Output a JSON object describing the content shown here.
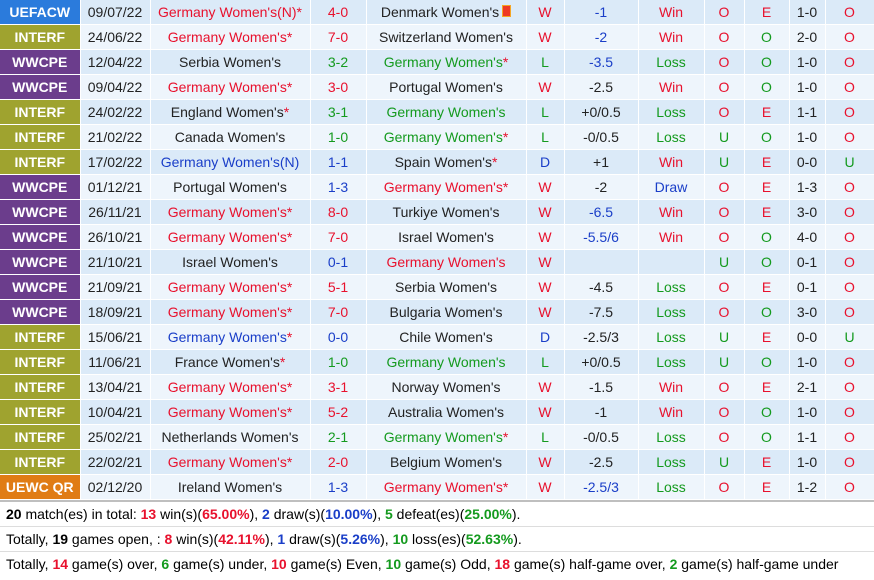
{
  "colors": {
    "UEFACW": "#2b7bdc",
    "INTERF": "#9fa32f",
    "WWCPE": "#6b3d8c",
    "UEWC QR": "#e07c15"
  },
  "rows": [
    {
      "comp": "UEFACW",
      "date": "09/07/22",
      "home": "Germany Women's(N)",
      "home_star": true,
      "home_color": "red",
      "score": "4-0",
      "score_color": "red",
      "away": "Denmark Women's",
      "away_star": false,
      "away_color": "dk",
      "away_flag": true,
      "res": "W",
      "res_color": "red",
      "hc": "-1",
      "hc_color": "blue",
      "hcr": "Win",
      "hcr_color": "red",
      "ou": "O",
      "ou_color": "red",
      "oe": "E",
      "oe_color": "red",
      "ht": "1-0",
      "hou": "O",
      "hou_color": "red"
    },
    {
      "comp": "INTERF",
      "date": "24/06/22",
      "home": "Germany Women's",
      "home_star": true,
      "home_color": "red",
      "score": "7-0",
      "score_color": "red",
      "away": "Switzerland Women's",
      "away_star": false,
      "away_color": "dk",
      "away_flag": false,
      "res": "W",
      "res_color": "red",
      "hc": "-2",
      "hc_color": "blue",
      "hcr": "Win",
      "hcr_color": "red",
      "ou": "O",
      "ou_color": "red",
      "oe": "O",
      "oe_color": "green",
      "ht": "2-0",
      "hou": "O",
      "hou_color": "red"
    },
    {
      "comp": "WWCPE",
      "date": "12/04/22",
      "home": "Serbia Women's",
      "home_star": false,
      "home_color": "dk",
      "score": "3-2",
      "score_color": "green",
      "away": "Germany Women's",
      "away_star": true,
      "away_color": "green",
      "away_flag": false,
      "res": "L",
      "res_color": "green",
      "hc": "-3.5",
      "hc_color": "blue",
      "hcr": "Loss",
      "hcr_color": "green",
      "ou": "O",
      "ou_color": "red",
      "oe": "O",
      "oe_color": "green",
      "ht": "1-0",
      "hou": "O",
      "hou_color": "red"
    },
    {
      "comp": "WWCPE",
      "date": "09/04/22",
      "home": "Germany Women's",
      "home_star": true,
      "home_color": "red",
      "score": "3-0",
      "score_color": "red",
      "away": "Portugal Women's",
      "away_star": false,
      "away_color": "dk",
      "away_flag": false,
      "res": "W",
      "res_color": "red",
      "hc": "-2.5",
      "hc_color": "dk",
      "hcr": "Win",
      "hcr_color": "red",
      "ou": "O",
      "ou_color": "red",
      "oe": "O",
      "oe_color": "green",
      "ht": "1-0",
      "hou": "O",
      "hou_color": "red"
    },
    {
      "comp": "INTERF",
      "date": "24/02/22",
      "home": "England Women's",
      "home_star": true,
      "home_color": "dk",
      "score": "3-1",
      "score_color": "green",
      "away": "Germany Women's",
      "away_star": false,
      "away_color": "green",
      "away_flag": false,
      "res": "L",
      "res_color": "green",
      "hc": "+0/0.5",
      "hc_color": "dk",
      "hcr": "Loss",
      "hcr_color": "green",
      "ou": "O",
      "ou_color": "red",
      "oe": "E",
      "oe_color": "red",
      "ht": "1-1",
      "hou": "O",
      "hou_color": "red"
    },
    {
      "comp": "INTERF",
      "date": "21/02/22",
      "home": "Canada Women's",
      "home_star": false,
      "home_color": "dk",
      "score": "1-0",
      "score_color": "green",
      "away": "Germany Women's",
      "away_star": true,
      "away_color": "green",
      "away_flag": false,
      "res": "L",
      "res_color": "green",
      "hc": "-0/0.5",
      "hc_color": "dk",
      "hcr": "Loss",
      "hcr_color": "green",
      "ou": "U",
      "ou_color": "green",
      "oe": "O",
      "oe_color": "green",
      "ht": "1-0",
      "hou": "O",
      "hou_color": "red"
    },
    {
      "comp": "INTERF",
      "date": "17/02/22",
      "home": "Germany Women's(N)",
      "home_star": false,
      "home_color": "blue",
      "score": "1-1",
      "score_color": "blue",
      "away": "Spain Women's",
      "away_star": true,
      "away_color": "dk",
      "away_flag": false,
      "res": "D",
      "res_color": "blue",
      "hc": "+1",
      "hc_color": "dk",
      "hcr": "Win",
      "hcr_color": "red",
      "ou": "U",
      "ou_color": "green",
      "oe": "E",
      "oe_color": "red",
      "ht": "0-0",
      "hou": "U",
      "hou_color": "green"
    },
    {
      "comp": "WWCPE",
      "date": "01/12/21",
      "home": "Portugal Women's",
      "home_star": false,
      "home_color": "dk",
      "score": "1-3",
      "score_color": "blue",
      "away": "Germany Women's",
      "away_star": true,
      "away_color": "red",
      "away_flag": false,
      "res": "W",
      "res_color": "red",
      "hc": "-2",
      "hc_color": "dk",
      "hcr": "Draw",
      "hcr_color": "blue",
      "ou": "O",
      "ou_color": "red",
      "oe": "E",
      "oe_color": "red",
      "ht": "1-3",
      "hou": "O",
      "hou_color": "red"
    },
    {
      "comp": "WWCPE",
      "date": "26/11/21",
      "home": "Germany Women's",
      "home_star": true,
      "home_color": "red",
      "score": "8-0",
      "score_color": "red",
      "away": "Turkiye Women's",
      "away_star": false,
      "away_color": "dk",
      "away_flag": false,
      "res": "W",
      "res_color": "red",
      "hc": "-6.5",
      "hc_color": "blue",
      "hcr": "Win",
      "hcr_color": "red",
      "ou": "O",
      "ou_color": "red",
      "oe": "E",
      "oe_color": "red",
      "ht": "3-0",
      "hou": "O",
      "hou_color": "red"
    },
    {
      "comp": "WWCPE",
      "date": "26/10/21",
      "home": "Germany Women's",
      "home_star": true,
      "home_color": "red",
      "score": "7-0",
      "score_color": "red",
      "away": "Israel Women's",
      "away_star": false,
      "away_color": "dk",
      "away_flag": false,
      "res": "W",
      "res_color": "red",
      "hc": "-5.5/6",
      "hc_color": "blue",
      "hcr": "Win",
      "hcr_color": "red",
      "ou": "O",
      "ou_color": "red",
      "oe": "O",
      "oe_color": "green",
      "ht": "4-0",
      "hou": "O",
      "hou_color": "red"
    },
    {
      "comp": "WWCPE",
      "date": "21/10/21",
      "home": "Israel Women's",
      "home_star": false,
      "home_color": "dk",
      "score": "0-1",
      "score_color": "blue",
      "away": "Germany Women's",
      "away_star": false,
      "away_color": "red",
      "away_flag": false,
      "res": "W",
      "res_color": "red",
      "hc": "",
      "hc_color": "dk",
      "hcr": "",
      "hcr_color": "dk",
      "ou": "U",
      "ou_color": "green",
      "oe": "O",
      "oe_color": "green",
      "ht": "0-1",
      "hou": "O",
      "hou_color": "red"
    },
    {
      "comp": "WWCPE",
      "date": "21/09/21",
      "home": "Germany Women's",
      "home_star": true,
      "home_color": "red",
      "score": "5-1",
      "score_color": "red",
      "away": "Serbia Women's",
      "away_star": false,
      "away_color": "dk",
      "away_flag": false,
      "res": "W",
      "res_color": "red",
      "hc": "-4.5",
      "hc_color": "dk",
      "hcr": "Loss",
      "hcr_color": "green",
      "ou": "O",
      "ou_color": "red",
      "oe": "E",
      "oe_color": "red",
      "ht": "0-1",
      "hou": "O",
      "hou_color": "red"
    },
    {
      "comp": "WWCPE",
      "date": "18/09/21",
      "home": "Germany Women's",
      "home_star": true,
      "home_color": "red",
      "score": "7-0",
      "score_color": "red",
      "away": "Bulgaria Women's",
      "away_star": false,
      "away_color": "dk",
      "away_flag": false,
      "res": "W",
      "res_color": "red",
      "hc": "-7.5",
      "hc_color": "dk",
      "hcr": "Loss",
      "hcr_color": "green",
      "ou": "O",
      "ou_color": "red",
      "oe": "O",
      "oe_color": "green",
      "ht": "3-0",
      "hou": "O",
      "hou_color": "red"
    },
    {
      "comp": "INTERF",
      "date": "15/06/21",
      "home": "Germany Women's",
      "home_star": true,
      "home_color": "blue",
      "score": "0-0",
      "score_color": "blue",
      "away": "Chile Women's",
      "away_star": false,
      "away_color": "dk",
      "away_flag": false,
      "res": "D",
      "res_color": "blue",
      "hc": "-2.5/3",
      "hc_color": "dk",
      "hcr": "Loss",
      "hcr_color": "green",
      "ou": "U",
      "ou_color": "green",
      "oe": "E",
      "oe_color": "red",
      "ht": "0-0",
      "hou": "U",
      "hou_color": "green"
    },
    {
      "comp": "INTERF",
      "date": "11/06/21",
      "home": "France Women's",
      "home_star": true,
      "home_color": "dk",
      "score": "1-0",
      "score_color": "green",
      "away": "Germany Women's",
      "away_star": false,
      "away_color": "green",
      "away_flag": false,
      "res": "L",
      "res_color": "green",
      "hc": "+0/0.5",
      "hc_color": "dk",
      "hcr": "Loss",
      "hcr_color": "green",
      "ou": "U",
      "ou_color": "green",
      "oe": "O",
      "oe_color": "green",
      "ht": "1-0",
      "hou": "O",
      "hou_color": "red"
    },
    {
      "comp": "INTERF",
      "date": "13/04/21",
      "home": "Germany Women's",
      "home_star": true,
      "home_color": "red",
      "score": "3-1",
      "score_color": "red",
      "away": "Norway Women's",
      "away_star": false,
      "away_color": "dk",
      "away_flag": false,
      "res": "W",
      "res_color": "red",
      "hc": "-1.5",
      "hc_color": "dk",
      "hcr": "Win",
      "hcr_color": "red",
      "ou": "O",
      "ou_color": "red",
      "oe": "E",
      "oe_color": "red",
      "ht": "2-1",
      "hou": "O",
      "hou_color": "red"
    },
    {
      "comp": "INTERF",
      "date": "10/04/21",
      "home": "Germany Women's",
      "home_star": true,
      "home_color": "red",
      "score": "5-2",
      "score_color": "red",
      "away": "Australia Women's",
      "away_star": false,
      "away_color": "dk",
      "away_flag": false,
      "res": "W",
      "res_color": "red",
      "hc": "-1",
      "hc_color": "dk",
      "hcr": "Win",
      "hcr_color": "red",
      "ou": "O",
      "ou_color": "red",
      "oe": "O",
      "oe_color": "green",
      "ht": "1-0",
      "hou": "O",
      "hou_color": "red"
    },
    {
      "comp": "INTERF",
      "date": "25/02/21",
      "home": "Netherlands Women's",
      "home_star": false,
      "home_color": "dk",
      "score": "2-1",
      "score_color": "green",
      "away": "Germany Women's",
      "away_star": true,
      "away_color": "green",
      "away_flag": false,
      "res": "L",
      "res_color": "green",
      "hc": "-0/0.5",
      "hc_color": "dk",
      "hcr": "Loss",
      "hcr_color": "green",
      "ou": "O",
      "ou_color": "red",
      "oe": "O",
      "oe_color": "green",
      "ht": "1-1",
      "hou": "O",
      "hou_color": "red"
    },
    {
      "comp": "INTERF",
      "date": "22/02/21",
      "home": "Germany Women's",
      "home_star": true,
      "home_color": "red",
      "score": "2-0",
      "score_color": "red",
      "away": "Belgium Women's",
      "away_star": false,
      "away_color": "dk",
      "away_flag": false,
      "res": "W",
      "res_color": "red",
      "hc": "-2.5",
      "hc_color": "dk",
      "hcr": "Loss",
      "hcr_color": "green",
      "ou": "U",
      "ou_color": "green",
      "oe": "E",
      "oe_color": "red",
      "ht": "1-0",
      "hou": "O",
      "hou_color": "red"
    },
    {
      "comp": "UEWC QR",
      "date": "02/12/20",
      "home": "Ireland Women's",
      "home_star": false,
      "home_color": "dk",
      "score": "1-3",
      "score_color": "blue",
      "away": "Germany Women's",
      "away_star": true,
      "away_color": "red",
      "away_flag": false,
      "res": "W",
      "res_color": "red",
      "hc": "-2.5/3",
      "hc_color": "blue",
      "hcr": "Loss",
      "hcr_color": "green",
      "ou": "O",
      "ou_color": "red",
      "oe": "E",
      "oe_color": "red",
      "ht": "1-2",
      "hou": "O",
      "hou_color": "red"
    }
  ],
  "summary": {
    "line1": [
      {
        "t": "20",
        "c": "b"
      },
      {
        "t": " match(es) in total: ",
        "c": ""
      },
      {
        "t": "13",
        "c": "sr"
      },
      {
        "t": " win(s)(",
        "c": ""
      },
      {
        "t": "65.00%",
        "c": "sr"
      },
      {
        "t": "), ",
        "c": ""
      },
      {
        "t": "2",
        "c": "sb"
      },
      {
        "t": " draw(s)(",
        "c": ""
      },
      {
        "t": "10.00%",
        "c": "sb"
      },
      {
        "t": "), ",
        "c": ""
      },
      {
        "t": "5",
        "c": "sg"
      },
      {
        "t": " defeat(es)(",
        "c": ""
      },
      {
        "t": "25.00%",
        "c": "sg"
      },
      {
        "t": ").",
        "c": ""
      }
    ],
    "line2": [
      {
        "t": "Totally, ",
        "c": ""
      },
      {
        "t": "19",
        "c": "b"
      },
      {
        "t": " games open, : ",
        "c": ""
      },
      {
        "t": "8",
        "c": "sr"
      },
      {
        "t": " win(s)(",
        "c": ""
      },
      {
        "t": "42.11%",
        "c": "sr"
      },
      {
        "t": "), ",
        "c": ""
      },
      {
        "t": "1",
        "c": "sb"
      },
      {
        "t": " draw(s)(",
        "c": ""
      },
      {
        "t": "5.26%",
        "c": "sb"
      },
      {
        "t": "), ",
        "c": ""
      },
      {
        "t": "10",
        "c": "sg"
      },
      {
        "t": " loss(es)(",
        "c": ""
      },
      {
        "t": "52.63%",
        "c": "sg"
      },
      {
        "t": ").",
        "c": ""
      }
    ],
    "line3": [
      {
        "t": "Totally, ",
        "c": ""
      },
      {
        "t": "14",
        "c": "sr"
      },
      {
        "t": " game(s) over, ",
        "c": ""
      },
      {
        "t": "6",
        "c": "sg"
      },
      {
        "t": " game(s) under, ",
        "c": ""
      },
      {
        "t": "10",
        "c": "sr"
      },
      {
        "t": " game(s) Even, ",
        "c": ""
      },
      {
        "t": "10",
        "c": "sg"
      },
      {
        "t": " game(s) Odd, ",
        "c": ""
      },
      {
        "t": "18",
        "c": "sr"
      },
      {
        "t": " game(s) half-game over, ",
        "c": ""
      },
      {
        "t": "2",
        "c": "sg"
      },
      {
        "t": " game(s) half-game under",
        "c": ""
      }
    ]
  }
}
